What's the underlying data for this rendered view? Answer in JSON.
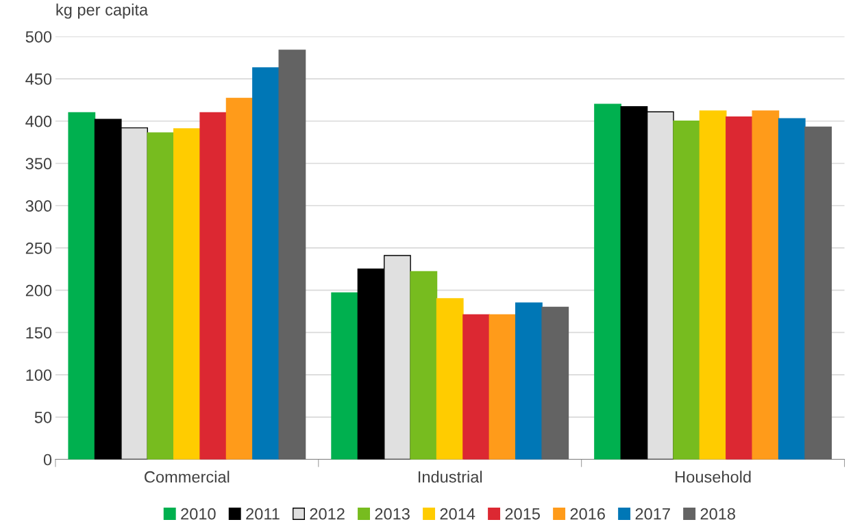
{
  "chart_data": {
    "type": "bar",
    "ylabel": "kg per capita",
    "categories": [
      "Commercial",
      "Industrial",
      "Household"
    ],
    "series": [
      {
        "name": "2010",
        "color": "#00b04f",
        "values": [
          410,
          197,
          420
        ]
      },
      {
        "name": "2011",
        "color": "#000000",
        "values": [
          402,
          225,
          417
        ]
      },
      {
        "name": "2012",
        "color": "#e0e0e0",
        "values": [
          392,
          241,
          411
        ]
      },
      {
        "name": "2013",
        "color": "#77bc1f",
        "values": [
          386,
          222,
          400
        ]
      },
      {
        "name": "2014",
        "color": "#ffcc00",
        "values": [
          391,
          190,
          412
        ]
      },
      {
        "name": "2015",
        "color": "#dc2832",
        "values": [
          410,
          171,
          405
        ]
      },
      {
        "name": "2016",
        "color": "#ff9b1a",
        "values": [
          427,
          171,
          412
        ]
      },
      {
        "name": "2017",
        "color": "#0077b6",
        "values": [
          463,
          185,
          403
        ]
      },
      {
        "name": "2018",
        "color": "#636363",
        "values": [
          484,
          180,
          393
        ]
      }
    ],
    "ylim": [
      0,
      500
    ],
    "yticks": [
      0,
      50,
      100,
      150,
      200,
      250,
      300,
      350,
      400,
      450,
      500
    ],
    "grid": "y",
    "legend": "bottom"
  }
}
